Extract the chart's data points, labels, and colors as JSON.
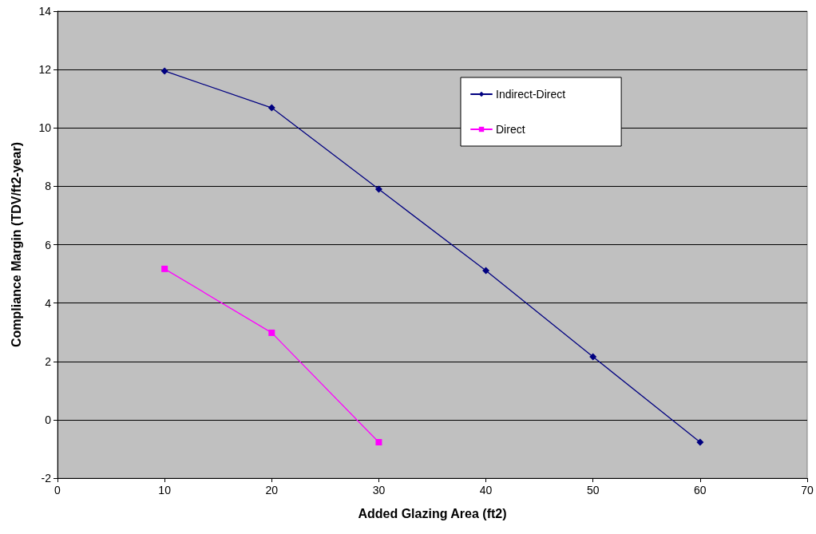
{
  "chart_data": {
    "type": "line",
    "xlabel": "Added Glazing Area (ft2)",
    "ylabel": "Compliance Margin (TDV/ft2-year)",
    "x": [
      10,
      20,
      30,
      40,
      50,
      60
    ],
    "series": [
      {
        "name": "Indirect-Direct",
        "color": "#000080",
        "marker": "diamond",
        "values": [
          11.95,
          10.69,
          7.9,
          5.11,
          2.16,
          -0.77
        ]
      },
      {
        "name": "Direct",
        "color": "#ff00ff",
        "marker": "square",
        "x": [
          10,
          20,
          30
        ],
        "values": [
          5.17,
          2.98,
          -0.77
        ]
      }
    ],
    "xlim": [
      0,
      70
    ],
    "xticks": [
      0,
      10,
      20,
      30,
      40,
      50,
      60,
      70
    ],
    "ylim": [
      -2,
      14
    ],
    "yticks": [
      -2,
      0,
      2,
      4,
      6,
      8,
      10,
      12,
      14
    ],
    "grid": "y",
    "legend": "top right"
  }
}
